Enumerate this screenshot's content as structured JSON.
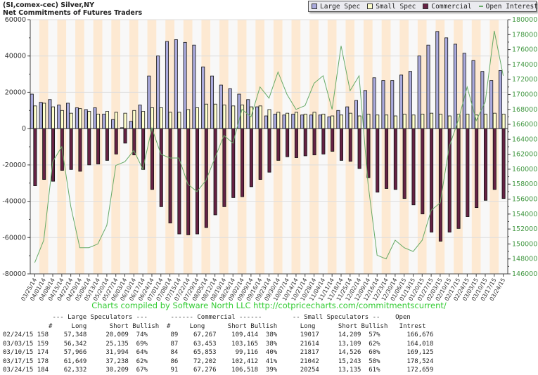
{
  "header": {
    "title": "(SI,comex-cec) Silver,NY",
    "subtitle": "Net Commitments of Futures Traders"
  },
  "legend": [
    {
      "label": "Large Spec",
      "color": "#aaaadd",
      "kind": "box"
    },
    {
      "label": "Small Spec",
      "color": "#ffffcc",
      "kind": "box"
    },
    {
      "label": "Commercial",
      "color": "#662244",
      "kind": "box"
    },
    {
      "label": "Open Interest",
      "color": "#66aa66",
      "kind": "line"
    }
  ],
  "credit": "Charts compiled by Software North LLC  http://cotpricecharts.com/commitmentscurrent/",
  "chart_data": {
    "type": "bar",
    "title": "Net Commitments of Futures Traders",
    "categories": [
      "03/25/14",
      "04/01/14",
      "04/08/14",
      "04/15/14",
      "04/22/14",
      "04/29/14",
      "05/06/14",
      "05/13/14",
      "05/20/14",
      "05/27/14",
      "06/03/14",
      "06/10/14",
      "06/17/14",
      "06/24/14",
      "07/01/14",
      "07/08/14",
      "07/15/14",
      "07/22/14",
      "07/29/14",
      "08/05/14",
      "08/12/14",
      "08/19/14",
      "08/26/14",
      "09/02/14",
      "09/09/14",
      "09/16/14",
      "09/23/14",
      "09/30/14",
      "10/07/14",
      "10/14/14",
      "10/21/14",
      "10/28/14",
      "11/04/14",
      "11/11/14",
      "11/18/14",
      "11/25/14",
      "12/02/14",
      "12/09/14",
      "12/16/14",
      "12/23/14",
      "12/30/14",
      "01/06/15",
      "01/13/15",
      "01/20/15",
      "01/27/15",
      "02/03/15",
      "02/10/15",
      "02/17/15",
      "02/24/15",
      "03/03/15",
      "03/10/15",
      "03/17/15",
      "03/24/15"
    ],
    "y_left": {
      "ylim": [
        -80000,
        60000
      ],
      "ticks": [
        60000,
        40000,
        20000,
        0,
        -20000,
        -40000,
        -60000,
        -80000
      ]
    },
    "y_right": {
      "ylim": [
        146000,
        180000
      ],
      "ticks": [
        180000,
        178000,
        176000,
        174000,
        172000,
        170000,
        168000,
        166000,
        164000,
        162000,
        160000,
        158000,
        156000,
        154000,
        152000,
        150000,
        148000,
        146000
      ]
    },
    "grid": true,
    "legend_position": "top-right",
    "series": [
      {
        "name": "Large Spec",
        "axis": "left",
        "kind": "bar",
        "values": [
          19000,
          14500,
          16000,
          13000,
          14000,
          11500,
          10500,
          11500,
          8000,
          5000,
          500,
          4000,
          13000,
          29000,
          40000,
          48000,
          49000,
          47500,
          46000,
          34000,
          29000,
          24000,
          22000,
          19000,
          16000,
          12000,
          7000,
          8000,
          7500,
          8000,
          7500,
          7500,
          7500,
          6500,
          10000,
          12000,
          15500,
          21000,
          28000,
          26500,
          26500,
          29500,
          31500,
          40000,
          46000,
          53500,
          50000,
          46500,
          41500,
          37500,
          31500,
          26500,
          32000
        ]
      },
      {
        "name": "Small Spec",
        "axis": "left",
        "kind": "bar",
        "values": [
          12500,
          14000,
          12000,
          10000,
          8500,
          11000,
          9500,
          8000,
          9500,
          9000,
          8500,
          10000,
          9500,
          11500,
          11500,
          9000,
          9000,
          10500,
          11500,
          13500,
          13500,
          13000,
          12500,
          13000,
          12000,
          12500,
          10500,
          9000,
          8500,
          9000,
          8000,
          9000,
          8000,
          7000,
          7500,
          8500,
          7000,
          8000,
          7500,
          7500,
          7000,
          8000,
          7500,
          8000,
          8500,
          8000,
          7000,
          8000,
          8000,
          7500,
          8000,
          8500,
          8000
        ]
      },
      {
        "name": "Commercial",
        "axis": "left",
        "kind": "bar",
        "values": [
          -31500,
          -28000,
          -29000,
          -23000,
          -22500,
          -23500,
          -20000,
          -19500,
          -17500,
          -14000,
          -8000,
          -14500,
          -22500,
          -33500,
          -43000,
          -52000,
          -58000,
          -58500,
          -58000,
          -54500,
          -47500,
          -43000,
          -38000,
          -37500,
          -32000,
          -28000,
          -24000,
          -17500,
          -15500,
          -16000,
          -15000,
          -14500,
          -14000,
          -12500,
          -17500,
          -18000,
          -22000,
          -27000,
          -35000,
          -33000,
          -33500,
          -38500,
          -42000,
          -47000,
          -57000,
          -62000,
          -57000,
          -55000,
          -48500,
          -43500,
          -39500,
          -33500,
          -38500
        ]
      },
      {
        "name": "Open Interest",
        "axis": "right",
        "kind": "line",
        "values": [
          147500,
          150500,
          161000,
          163000,
          155000,
          149500,
          149500,
          150000,
          152500,
          160500,
          161000,
          162500,
          160000,
          165500,
          162000,
          161500,
          161500,
          158000,
          157000,
          158500,
          161500,
          164500,
          163500,
          168000,
          167000,
          171000,
          169500,
          173000,
          170000,
          168000,
          168500,
          171500,
          172500,
          168000,
          176500,
          170500,
          172500,
          158000,
          148500,
          148000,
          150500,
          149500,
          149000,
          150500,
          154500,
          155500,
          163000,
          166500,
          171000,
          166500,
          169000,
          178500,
          172500
        ]
      }
    ]
  },
  "table": {
    "group_headers": {
      "large": "--- Large Speculators ---",
      "commercial": "------ Commercial ------",
      "small": "-- Small Speculators --",
      "oi_top": "Open"
    },
    "columns": [
      "#",
      "Long",
      "Short",
      "Bullish",
      "#",
      "Long",
      "Short",
      "Bullish",
      "Long",
      "Short",
      "Bullish",
      "Intrest"
    ],
    "rows": [
      {
        "date": "02/24/15",
        "ls_n": "158",
        "ls_long": "57,348",
        "ls_short": "20,009",
        "ls_bull": "74%",
        "c_n": "89",
        "c_long": "67,267",
        "c_short": "109,414",
        "c_bull": "38%",
        "ss_long": "19017",
        "ss_short": "14,209",
        "ss_bull": "57%",
        "oi": "166,676"
      },
      {
        "date": "03/03/15",
        "ls_n": "159",
        "ls_long": "56,342",
        "ls_short": "25,135",
        "ls_bull": "69%",
        "c_n": "87",
        "c_long": "63,453",
        "c_short": "103,165",
        "c_bull": "38%",
        "ss_long": "21614",
        "ss_short": "13,109",
        "ss_bull": "62%",
        "oi": "164,018"
      },
      {
        "date": "03/10/15",
        "ls_n": "174",
        "ls_long": "57,966",
        "ls_short": "31,994",
        "ls_bull": "64%",
        "c_n": "84",
        "c_long": "65,853",
        "c_short": "99,116",
        "c_bull": "40%",
        "ss_long": "21817",
        "ss_short": "14,526",
        "ss_bull": "60%",
        "oi": "169,125"
      },
      {
        "date": "03/17/15",
        "ls_n": "178",
        "ls_long": "61,649",
        "ls_short": "37,238",
        "ls_bull": "62%",
        "c_n": "86",
        "c_long": "72,202",
        "c_short": "102,412",
        "c_bull": "41%",
        "ss_long": "21042",
        "ss_short": "15,243",
        "ss_bull": "58%",
        "oi": "178,524"
      },
      {
        "date": "03/24/15",
        "ls_n": "184",
        "ls_long": "62,332",
        "ls_short": "30,209",
        "ls_bull": "67%",
        "c_n": "91",
        "c_long": "67,276",
        "c_short": "106,518",
        "c_bull": "39%",
        "ss_long": "20254",
        "ss_short": "13,135",
        "ss_bull": "61%",
        "oi": "172,659"
      }
    ]
  }
}
